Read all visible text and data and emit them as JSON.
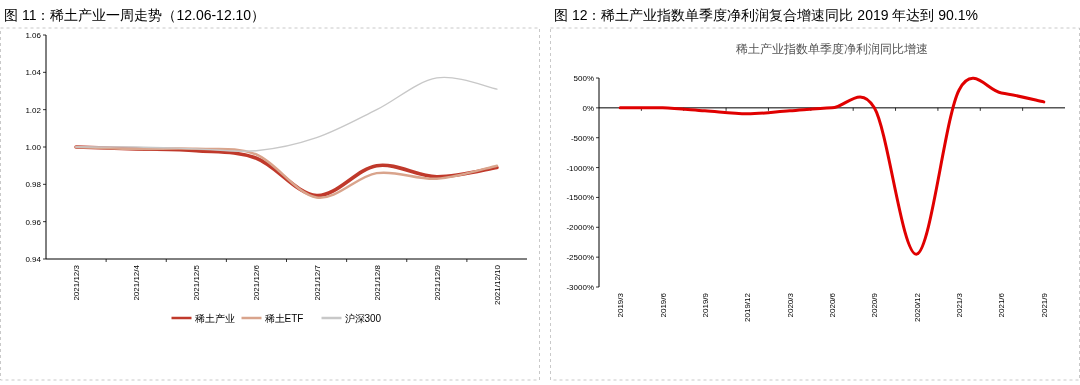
{
  "chart_data": [
    {
      "type": "line",
      "title": "图 11：稀土产业一周走势（12.06-12.10）",
      "categories": [
        "2021/12/3",
        "2021/12/4",
        "2021/12/5",
        "2021/12/6",
        "2021/12/7",
        "2021/12/8",
        "2021/12/9",
        "2021/12/10"
      ],
      "series": [
        {
          "name": "稀土产业",
          "color": "#c0392b",
          "values": [
            1.0,
            0.999,
            0.998,
            0.994,
            0.974,
            0.99,
            0.984,
            0.989
          ]
        },
        {
          "name": "稀土ETF",
          "color": "#d9a48c",
          "values": [
            1.0,
            0.999,
            0.999,
            0.996,
            0.973,
            0.986,
            0.983,
            0.99
          ]
        },
        {
          "name": "沪深300",
          "color": "#c8c8c8",
          "values": [
            1.0,
            1.0,
            0.999,
            0.998,
            1.005,
            1.02,
            1.037,
            1.031
          ]
        }
      ],
      "ylim": [
        0.94,
        1.06
      ],
      "yticks": [
        {
          "value": 0.94,
          "label": "0.94"
        },
        {
          "value": 0.96,
          "label": "0.96"
        },
        {
          "value": 0.98,
          "label": "0.98"
        },
        {
          "value": 1.0,
          "label": "1.00"
        },
        {
          "value": 1.02,
          "label": "1.02"
        },
        {
          "value": 1.04,
          "label": "1.04"
        },
        {
          "value": 1.06,
          "label": "1.06"
        }
      ],
      "legend": "bottom"
    },
    {
      "type": "line",
      "title": "图 12：稀土产业指数单季度净利润复合增速同比 2019 年达到 90.1%",
      "subtitle": "稀土产业指数单季度净利润同比增速",
      "categories": [
        "2019/3",
        "2019/6",
        "2019/9",
        "2019/12",
        "2020/3",
        "2020/6",
        "2020/9",
        "2020/12",
        "2021/3",
        "2021/6",
        "2021/9"
      ],
      "series": [
        {
          "color": "#e00000",
          "values": [
            0,
            0,
            -50,
            -100,
            -50,
            0,
            0,
            -2450,
            300,
            250,
            100
          ]
        }
      ],
      "ylim": [
        -3000,
        500
      ],
      "yticks": [
        {
          "value": -3000,
          "label": "-3000%"
        },
        {
          "value": -2500,
          "label": "-2500%"
        },
        {
          "value": -2000,
          "label": "-2000%"
        },
        {
          "value": -1500,
          "label": "-1500%"
        },
        {
          "value": -1000,
          "label": "-1000%"
        },
        {
          "value": -500,
          "label": "-500%"
        },
        {
          "value": 0,
          "label": "0%"
        },
        {
          "value": 500,
          "label": "500%"
        }
      ]
    }
  ]
}
